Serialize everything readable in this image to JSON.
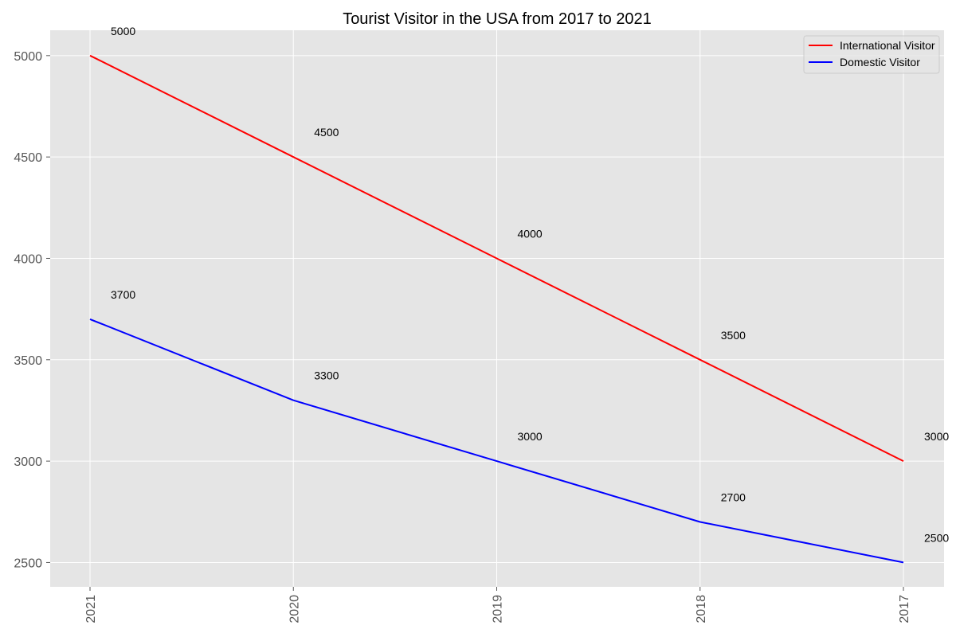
{
  "chart_data": {
    "type": "line",
    "title": "Tourist Visitor in the USA from 2017 to 2021",
    "xlabel": "",
    "ylabel": "",
    "categories": [
      "2021",
      "2020",
      "2019",
      "2018",
      "2017"
    ],
    "series": [
      {
        "name": "International Visitor",
        "color": "#ff0000",
        "values": [
          5000,
          4500,
          4000,
          3500,
          3000
        ]
      },
      {
        "name": "Domestic Visitor",
        "color": "#0000ff",
        "values": [
          3700,
          3300,
          3000,
          2700,
          2500
        ]
      }
    ],
    "yticks": [
      2500,
      3000,
      3500,
      4000,
      4500,
      5000
    ],
    "ylim": [
      2380,
      5125
    ],
    "grid": true,
    "legend_position": "top-right",
    "background_color": "#e5e5e5"
  }
}
